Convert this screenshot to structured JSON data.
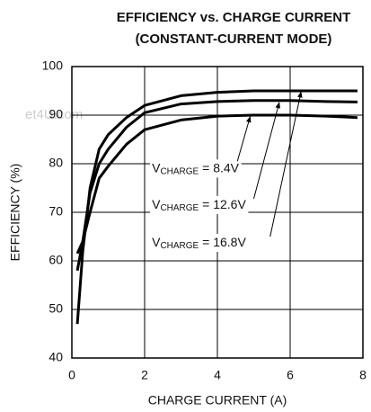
{
  "chart_data": {
    "type": "line",
    "title": [
      "EFFICIENCY vs. CHARGE CURRENT",
      "(CONSTANT-CURRENT MODE)"
    ],
    "xlabel": "CHARGE CURRENT (A)",
    "ylabel": "EFFICIENCY (%)",
    "watermark": "et4U.com",
    "x": [
      0.15,
      0.3,
      0.5,
      0.75,
      1,
      1.5,
      2,
      3,
      4,
      5,
      6,
      7,
      7.85
    ],
    "series": [
      {
        "name": "16.8V",
        "color": "#000000",
        "values": [
          47,
          62,
          75,
          83,
          86,
          89.5,
          92,
          94,
          94.7,
          95,
          95,
          95,
          95
        ]
      },
      {
        "name": "12.6V",
        "color": "#000000",
        "values": [
          58,
          64,
          74,
          80,
          83,
          87.5,
          90.5,
          92.3,
          92.8,
          93,
          93,
          92.8,
          92.7
        ]
      },
      {
        "name": "8.4V",
        "color": "#000000",
        "values": [
          61.5,
          64,
          70,
          77,
          79.5,
          84,
          87,
          89,
          89.8,
          90,
          90,
          89.8,
          89.5
        ]
      }
    ],
    "annotations": [
      {
        "text": "V",
        "sub": "CHARGE",
        "rest": " = 8.4V",
        "x": 2.2,
        "y": 79,
        "arrow_from": [
          4.55,
          80.5
        ],
        "arrow_to": [
          4.9,
          89.7
        ]
      },
      {
        "text": "V",
        "sub": "CHARGE",
        "rest": " = 12.6V",
        "x": 2.2,
        "y": 71.5,
        "arrow_from": [
          5.0,
          72.8
        ],
        "arrow_to": [
          5.7,
          92.6
        ]
      },
      {
        "text": "V",
        "sub": "CHARGE",
        "rest": " = 16.8V",
        "x": 2.2,
        "y": 63.7,
        "arrow_from": [
          5.45,
          65
        ],
        "arrow_to": [
          6.3,
          94.8
        ]
      }
    ],
    "xlim": [
      0,
      8
    ],
    "xticks": [
      0,
      2,
      4,
      6,
      8
    ],
    "ylim": [
      40,
      100
    ],
    "yticks": [
      40,
      50,
      60,
      70,
      80,
      90,
      100
    ],
    "grid": true
  }
}
